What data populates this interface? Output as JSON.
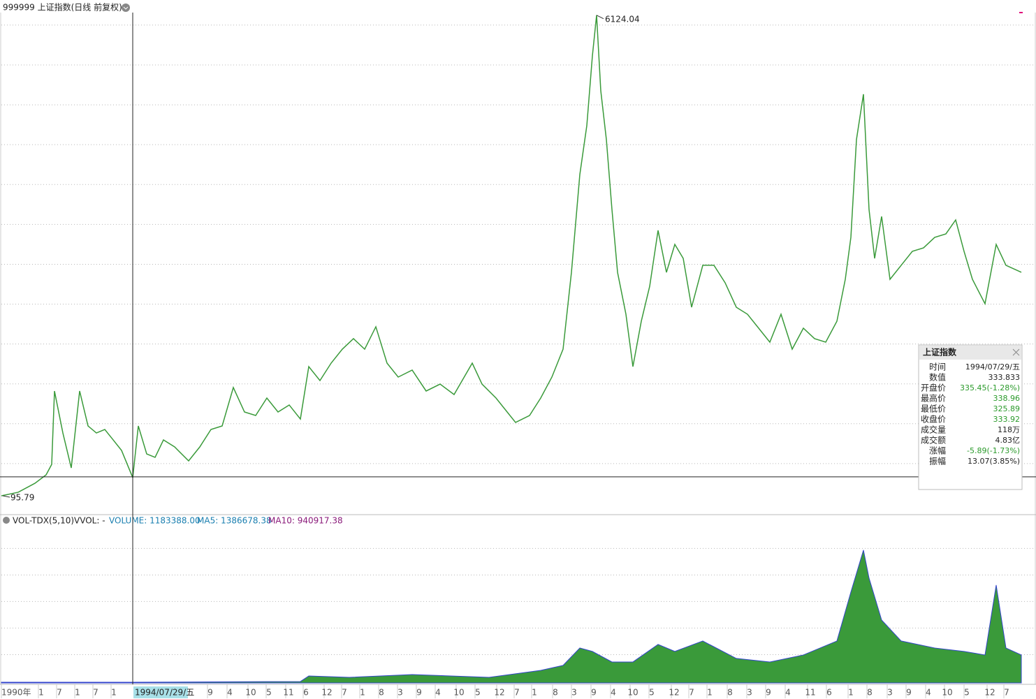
{
  "header": {
    "title": "999999 上证指数(日线 前复权)"
  },
  "chart_data": {
    "type": "line",
    "price": {
      "xlim": [
        0,
        7300
      ],
      "ylim": [
        -123,
        6157
      ],
      "grid_levels": [
        500,
        1000,
        1500,
        2000,
        2500,
        3000,
        3500,
        4000,
        4500,
        5000,
        5500,
        6000
      ],
      "color": "#3a9a3a",
      "x": [
        0,
        120,
        240,
        320,
        360,
        380,
        440,
        500,
        560,
        620,
        680,
        740,
        800,
        860,
        940,
        980,
        1040,
        1100,
        1160,
        1240,
        1340,
        1420,
        1500,
        1580,
        1660,
        1740,
        1820,
        1900,
        1980,
        2060,
        2140,
        2200,
        2280,
        2360,
        2440,
        2520,
        2600,
        2680,
        2760,
        2840,
        2940,
        3040,
        3140,
        3240,
        3370,
        3440,
        3540,
        3620,
        3680,
        3780,
        3860,
        3940,
        4020,
        4080,
        4140,
        4190,
        4230,
        4260,
        4290,
        4330,
        4370,
        4410,
        4470,
        4520,
        4580,
        4640,
        4700,
        4760,
        4820,
        4880,
        4940,
        5020,
        5100,
        5180,
        5260,
        5340,
        5420,
        5500,
        5580,
        5660,
        5740,
        5820,
        5900,
        5980,
        6040,
        6080,
        6120,
        6170,
        6210,
        6250,
        6300,
        6360,
        6440,
        6520,
        6600,
        6680,
        6760,
        6830,
        6890,
        6950,
        7040,
        7120,
        7190,
        7300
      ],
      "values": [
        95.79,
        140,
        253,
        359,
        490,
        1410,
        884,
        446,
        1410,
        972,
        884,
        928,
        797,
        665,
        324,
        972,
        621,
        578,
        797,
        709,
        534,
        709,
        928,
        972,
        1454,
        1147,
        1103,
        1322,
        1147,
        1235,
        1059,
        1716,
        1541,
        1760,
        1935,
        2067,
        1935,
        2216,
        1760,
        1585,
        1673,
        1410,
        1497,
        1366,
        1760,
        1497,
        1322,
        1147,
        1016,
        1103,
        1322,
        1585,
        1935,
        2899,
        4125,
        4739,
        5615,
        6124.04,
        5176,
        4564,
        3687,
        2899,
        2373,
        1716,
        2286,
        2724,
        3425,
        2899,
        3249,
        3074,
        2461,
        2987,
        2987,
        2768,
        2461,
        2373,
        2198,
        2023,
        2373,
        1935,
        2198,
        2067,
        2023,
        2286,
        2811,
        3337,
        4564,
        5133,
        3687,
        3074,
        3600,
        2811,
        2987,
        3162,
        3206,
        3337,
        3381,
        3556,
        3162,
        2811,
        2505,
        3249,
        2987,
        2899
      ]
    },
    "volume": {
      "ylim": [
        0,
        172
      ],
      "grid_levels": [
        32,
        62,
        92,
        122,
        152
      ],
      "color": "#3a9a3a",
      "x": [
        0,
        940,
        2140,
        2200,
        2490,
        2940,
        3490,
        3860,
        4020,
        4140,
        4230,
        4370,
        4520,
        4700,
        4820,
        5020,
        5260,
        5500,
        5740,
        5980,
        6080,
        6170,
        6210,
        6300,
        6440,
        6680,
        6890,
        7040,
        7120,
        7190,
        7300
      ],
      "values": [
        0.8,
        0.8,
        1.6,
        7.9,
        6.3,
        9.5,
        6.3,
        14.2,
        19.8,
        39.5,
        35.6,
        23.7,
        23.7,
        43.5,
        35.6,
        47.4,
        27.7,
        23.7,
        31.6,
        47.4,
        102.7,
        150.1,
        118.5,
        71.1,
        47.4,
        39.5,
        35.6,
        31.6,
        110.6,
        39.5,
        31.6
      ]
    },
    "crosshair": {
      "x": 940,
      "value": 333.833,
      "date": "1994/07/29/五"
    }
  },
  "volume_header": {
    "name": "VOL-TDX(5,10)",
    "vvol": "VVOL: -",
    "volume": "VOLUME: 1183388.00",
    "ma5": "MA5: 1386678.38",
    "ma10": "MA10: 940917.38"
  },
  "x_axis_labels": [
    "1990年",
    "1",
    "7",
    "1",
    "7",
    "1",
    "9",
    "4",
    "10",
    "5",
    "11",
    "6",
    "12",
    "7",
    "1",
    "8",
    "3",
    "9",
    "4",
    "10",
    "5",
    "12",
    "7",
    "1",
    "8",
    "3",
    "9",
    "4",
    "10",
    "5",
    "12",
    "7",
    "1",
    "8",
    "3",
    "9",
    "4",
    "11",
    "6",
    "1",
    "8",
    "3",
    "9",
    "4",
    "10",
    "5",
    "12",
    "7"
  ],
  "info_panel": {
    "title": "上证指数",
    "rows": [
      [
        "时间",
        null
      ],
      [
        "数值",
        null
      ],
      [
        "开盘价",
        "335.45(-1.28%)"
      ],
      [
        "最高价",
        "338.96"
      ],
      [
        "最低价",
        "325.89"
      ],
      [
        "收盘价",
        "333.92"
      ],
      [
        "成交量",
        "118万"
      ],
      [
        "成交额",
        "4.83亿"
      ],
      [
        "涨幅",
        "-5.89(-1.73%)"
      ],
      [
        "振幅",
        "13.07(3.85%)"
      ]
    ]
  }
}
